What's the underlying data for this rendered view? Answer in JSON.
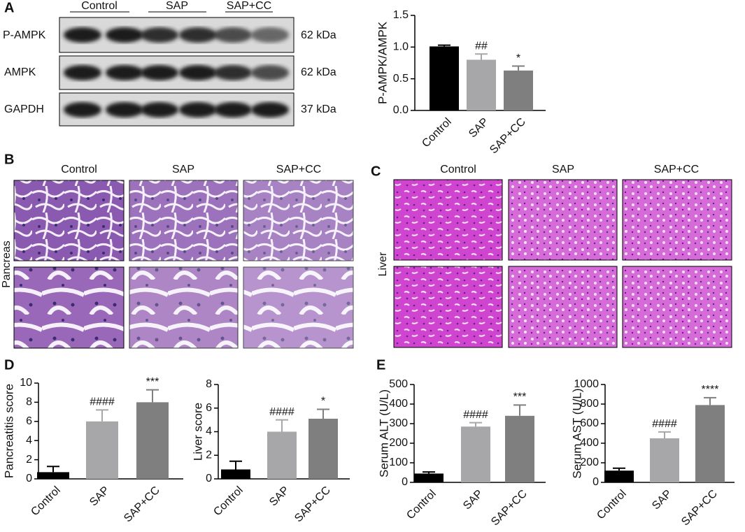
{
  "panel_labels": [
    "A",
    "B",
    "C",
    "D",
    "E"
  ],
  "blot": {
    "groups": [
      "Control",
      "SAP",
      "SAP+CC"
    ],
    "rows": [
      {
        "name": "P-AMPK",
        "size": "62 kDa"
      },
      {
        "name": "AMPK",
        "size": "62 kDa"
      },
      {
        "name": "GAPDH",
        "size": "37 kDa"
      }
    ]
  },
  "histology": [
    {
      "tissue": "Pancreas",
      "columns": [
        "Control",
        "SAP",
        "SAP+CC"
      ]
    },
    {
      "tissue": "Liver",
      "columns": [
        "Control",
        "SAP",
        "SAP+CC"
      ]
    }
  ],
  "chart_data": [
    {
      "type": "bar",
      "ylabel": "P-AMPK/AMPK",
      "categories": [
        "Control",
        "SAP",
        "SAP+CC"
      ],
      "values": [
        1.01,
        0.8,
        0.63
      ],
      "errors": [
        0.02,
        0.09,
        0.07
      ],
      "annotations": [
        null,
        "##",
        "*"
      ],
      "colors": [
        "#000000",
        "#a7a7aa",
        "#7f7f80"
      ],
      "ylim": [
        0,
        1.5
      ],
      "yticks": [
        {
          "value": 0,
          "label": "0.0"
        },
        0.5,
        {
          "value": 1,
          "label": "1.0"
        },
        1.5
      ]
    },
    {
      "type": "bar",
      "ylabel": "Pancreatitis score",
      "categories": [
        "Control",
        "SAP",
        "SAP+CC"
      ],
      "values": [
        0.7,
        6.0,
        8.0
      ],
      "errors": [
        0.6,
        1.2,
        1.3
      ],
      "annotations": [
        null,
        "####",
        "***"
      ],
      "colors": [
        "#000000",
        "#a7a7aa",
        "#7f7f80"
      ],
      "ylim": [
        0,
        10
      ],
      "yticks": [
        0,
        2,
        4,
        6,
        8,
        10
      ]
    },
    {
      "type": "bar",
      "ylabel": "Liver score",
      "categories": [
        "Control",
        "SAP",
        "SAP+CC"
      ],
      "values": [
        0.8,
        4.0,
        5.1
      ],
      "errors": [
        0.7,
        1.0,
        0.8
      ],
      "annotations": [
        null,
        "####",
        "*"
      ],
      "colors": [
        "#000000",
        "#a7a7aa",
        "#7f7f80"
      ],
      "ylim": [
        0,
        8
      ],
      "yticks": [
        0,
        2,
        4,
        6,
        8
      ]
    },
    {
      "type": "bar",
      "ylabel": "Serum ALT (U/L)",
      "categories": [
        "Control",
        "SAP",
        "SAP+CC"
      ],
      "values": [
        45,
        285,
        340
      ],
      "errors": [
        8,
        20,
        55
      ],
      "annotations": [
        null,
        "####",
        "***"
      ],
      "colors": [
        "#000000",
        "#a7a7aa",
        "#7f7f80"
      ],
      "ylim": [
        0,
        500
      ],
      "yticks": [
        0,
        100,
        200,
        300,
        400,
        500
      ]
    },
    {
      "type": "bar",
      "ylabel": "Serum AST (U/L)",
      "categories": [
        "Control",
        "SAP",
        "SAP+CC"
      ],
      "values": [
        120,
        450,
        790
      ],
      "errors": [
        25,
        65,
        75
      ],
      "annotations": [
        null,
        "####",
        "****"
      ],
      "colors": [
        "#000000",
        "#a7a7aa",
        "#7f7f80"
      ],
      "ylim": [
        0,
        1000
      ],
      "yticks": [
        0,
        200,
        400,
        600,
        800,
        1000
      ]
    }
  ]
}
